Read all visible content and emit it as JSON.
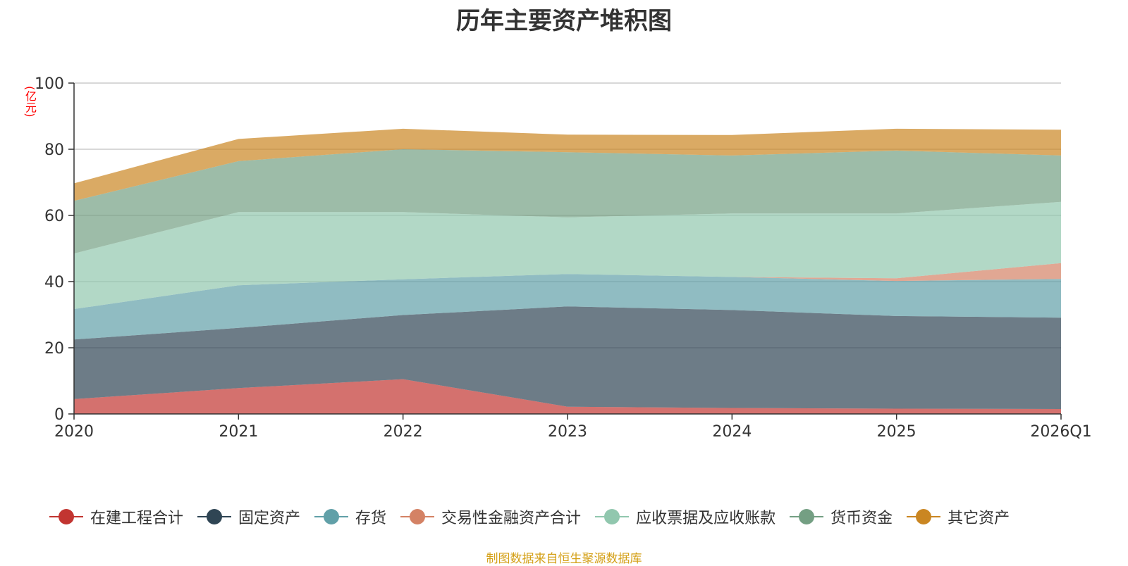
{
  "chart_data": {
    "type": "area",
    "title": "历年主要资产堆积图",
    "ylabel": "(亿元)",
    "stacked": true,
    "x": [
      "2020",
      "2021",
      "2022",
      "2023",
      "2024",
      "2025",
      "2026Q1"
    ],
    "ylim": [
      0,
      100
    ],
    "yticks": [
      0,
      20,
      40,
      60,
      80,
      100
    ],
    "grid": true,
    "legend_position": "bottom",
    "series": [
      {
        "name": "在建工程合计",
        "color": "#c23531",
        "values": [
          4.5,
          7.8,
          10.5,
          2.2,
          1.8,
          1.6,
          1.5
        ]
      },
      {
        "name": "固定资产",
        "color": "#2f4554",
        "values": [
          18.0,
          18.2,
          19.4,
          30.3,
          29.6,
          28.0,
          27.6
        ]
      },
      {
        "name": "存货",
        "color": "#61a0a8",
        "values": [
          9.2,
          12.9,
          10.8,
          9.8,
          10.0,
          10.6,
          11.7
        ]
      },
      {
        "name": "交易性金融资产合计",
        "color": "#d48265",
        "values": [
          0.0,
          0.0,
          0.0,
          0.0,
          0.0,
          0.8,
          4.8
        ]
      },
      {
        "name": "应收票据及应收账款",
        "color": "#91c7ae",
        "values": [
          16.8,
          22.1,
          20.3,
          17.1,
          19.2,
          19.6,
          18.5
        ]
      },
      {
        "name": "货币资金",
        "color": "#749f83",
        "values": [
          15.9,
          15.4,
          19.0,
          19.7,
          17.5,
          19.0,
          14.0
        ]
      },
      {
        "name": "其它资产",
        "color": "#ca8622",
        "values": [
          5.3,
          6.7,
          6.2,
          5.3,
          6.2,
          6.6,
          7.8
        ]
      }
    ]
  },
  "source_note": "制图数据来自恒生聚源数据库"
}
